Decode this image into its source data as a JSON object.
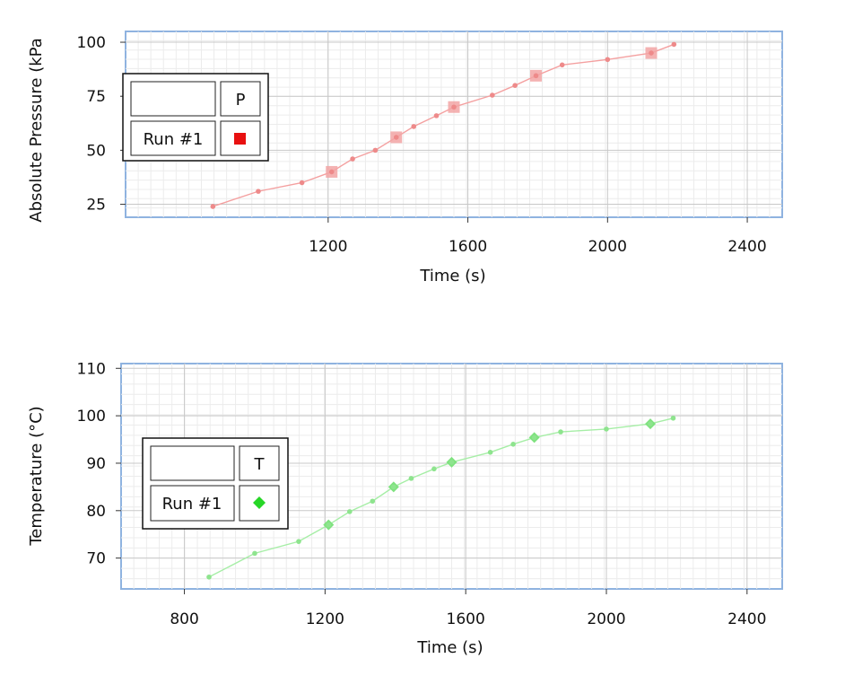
{
  "chart_data": [
    {
      "type": "line",
      "xlabel": "Time (s)",
      "ylabel": "Absolute Pressure (kPa",
      "xlim": [
        620,
        2500
      ],
      "ylim": [
        19,
        105
      ],
      "x_ticks": [
        "1200",
        "1600",
        "2000",
        "2400"
      ],
      "y_ticks": [
        "25",
        "50",
        "75",
        "100"
      ],
      "grid": true,
      "legend": {
        "placement": "top-left",
        "header": "P",
        "run_label": "Run #1"
      },
      "colors": {
        "line": "#f4a0a0",
        "point": "#ee8a8a",
        "big_point": "#f2a4a4",
        "swatch": "#e81010"
      },
      "series": [
        {
          "x": [
            870,
            1000,
            1125,
            1210,
            1270,
            1335,
            1395,
            1445,
            1510,
            1560,
            1670,
            1735,
            1795,
            1870,
            2000,
            2125,
            2190
          ],
          "y": [
            24,
            31,
            35,
            40,
            46,
            50,
            56,
            61,
            66,
            70,
            75.5,
            80,
            84.5,
            89.5,
            92,
            95,
            99
          ],
          "marked": [
            3,
            6,
            9,
            12,
            15
          ]
        }
      ]
    },
    {
      "type": "line",
      "xlabel": "Time (s)",
      "ylabel": "Temperature (°C)",
      "xlim": [
        620,
        2500
      ],
      "ylim": [
        63.5,
        111
      ],
      "x_ticks": [
        "800",
        "1200",
        "1600",
        "2000",
        "2400"
      ],
      "y_ticks": [
        "70",
        "80",
        "90",
        "100",
        "110"
      ],
      "grid": true,
      "legend": {
        "placement": "middle-left",
        "header": "T",
        "run_label": "Run #1"
      },
      "colors": {
        "line": "#a6eea6",
        "point": "#8ee48e",
        "big_point": "#7fe27f",
        "swatch": "#27d627"
      },
      "series": [
        {
          "x": [
            870,
            1000,
            1125,
            1210,
            1270,
            1335,
            1395,
            1445,
            1510,
            1560,
            1670,
            1735,
            1795,
            1870,
            2000,
            2125,
            2190
          ],
          "y": [
            66,
            71,
            73.5,
            77,
            79.8,
            82,
            85,
            86.8,
            88.8,
            90.2,
            92.3,
            94,
            95.4,
            96.6,
            97.2,
            98.3,
            99.5
          ],
          "marked": [
            3,
            6,
            9,
            12,
            15
          ]
        }
      ]
    }
  ]
}
